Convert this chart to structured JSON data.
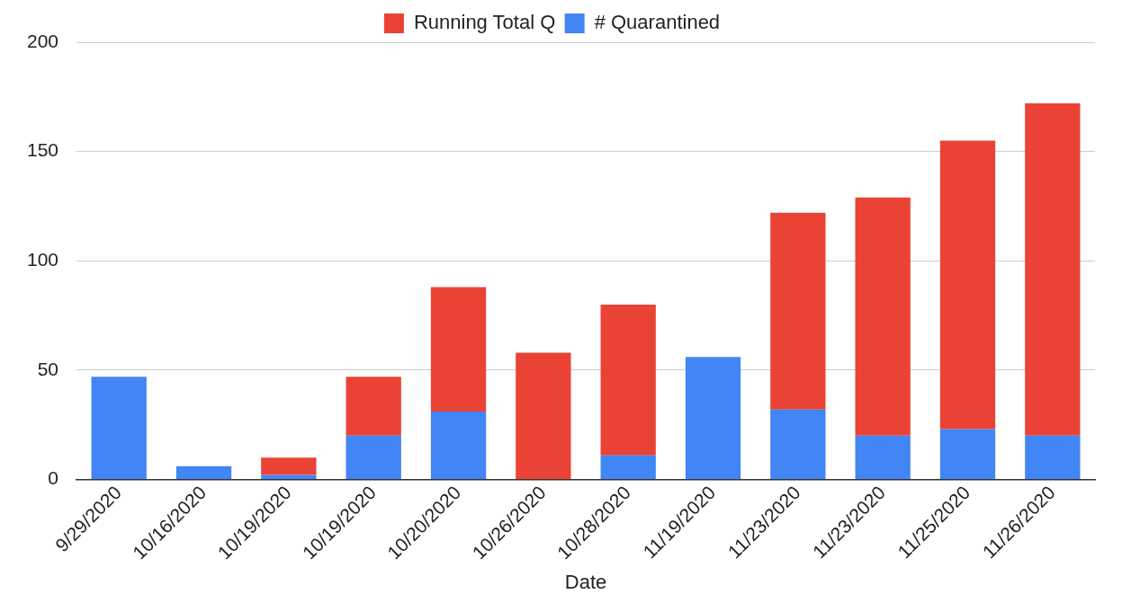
{
  "chart_data": {
    "type": "bar",
    "stacked": true,
    "xlabel": "Date",
    "categories": [
      "9/29/2020",
      "10/16/2020",
      "10/19/2020",
      "10/19/2020",
      "10/20/2020",
      "10/26/2020",
      "10/28/2020",
      "11/19/2020",
      "11/23/2020",
      "11/23/2020",
      "11/25/2020",
      "11/26/2020"
    ],
    "series": [
      {
        "name": "# Quarantined",
        "color": "#4285f4",
        "values": [
          47,
          6,
          2,
          20,
          31,
          0,
          11,
          56,
          32,
          20,
          23,
          20
        ]
      },
      {
        "name": "Running Total Q",
        "color": "#ea4335",
        "values": [
          0,
          0,
          8,
          27,
          57,
          58,
          69,
          0,
          90,
          109,
          132,
          152
        ]
      }
    ],
    "ylim": [
      0,
      200
    ],
    "yticks": [
      0,
      50,
      100,
      150,
      200
    ],
    "grid": "y",
    "legend": "top"
  }
}
